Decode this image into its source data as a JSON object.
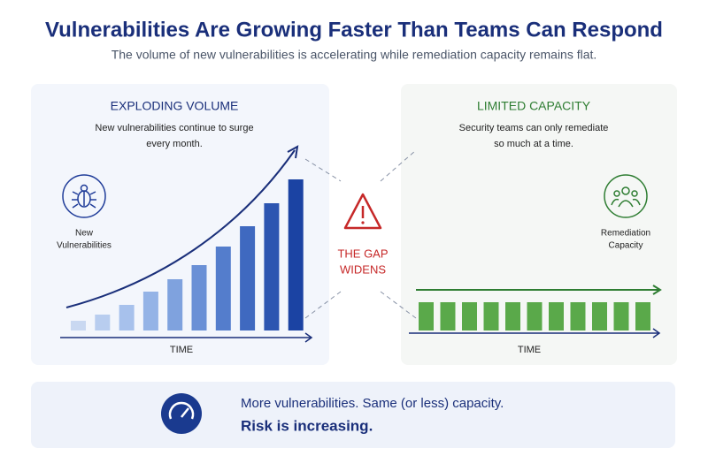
{
  "header": {
    "title": "Vulnerabilities Are Growing Faster Than Teams Can Respond",
    "subtitle": "The volume of new vulnerabilities is accelerating while remediation capacity remains flat."
  },
  "volume_panel": {
    "heading": "EXPLODING VOLUME",
    "description": [
      "New vulnerabilities continue to surge",
      "every month."
    ],
    "icon_label": [
      "New",
      "Vulnerabilities"
    ],
    "axis_label": "TIME",
    "values": [
      11,
      18,
      29,
      44,
      58,
      74,
      95,
      118,
      144,
      171
    ],
    "colors": [
      "#c9d8f1",
      "#b8cdef",
      "#a7c1ec",
      "#94b3e6",
      "#7fa2de",
      "#6a90d6",
      "#547dcc",
      "#3f69c0",
      "#2c55b1",
      "#1b43a3"
    ]
  },
  "center": {
    "label": [
      "THE GAP",
      "WIDENS"
    ]
  },
  "capacity_panel": {
    "heading": "LIMITED CAPACITY",
    "description": [
      "Security teams can only remediate",
      "so much at a time."
    ],
    "icon_label": [
      "Remediation",
      "Capacity"
    ],
    "axis_label": "TIME",
    "values": [
      32,
      32,
      32,
      32,
      32,
      32,
      32,
      32,
      32,
      32,
      32
    ],
    "color": "#5aa94a"
  },
  "footer": {
    "line1": "More vulnerabilities. Same (or less) capacity.",
    "line2": "Risk is increasing."
  }
}
